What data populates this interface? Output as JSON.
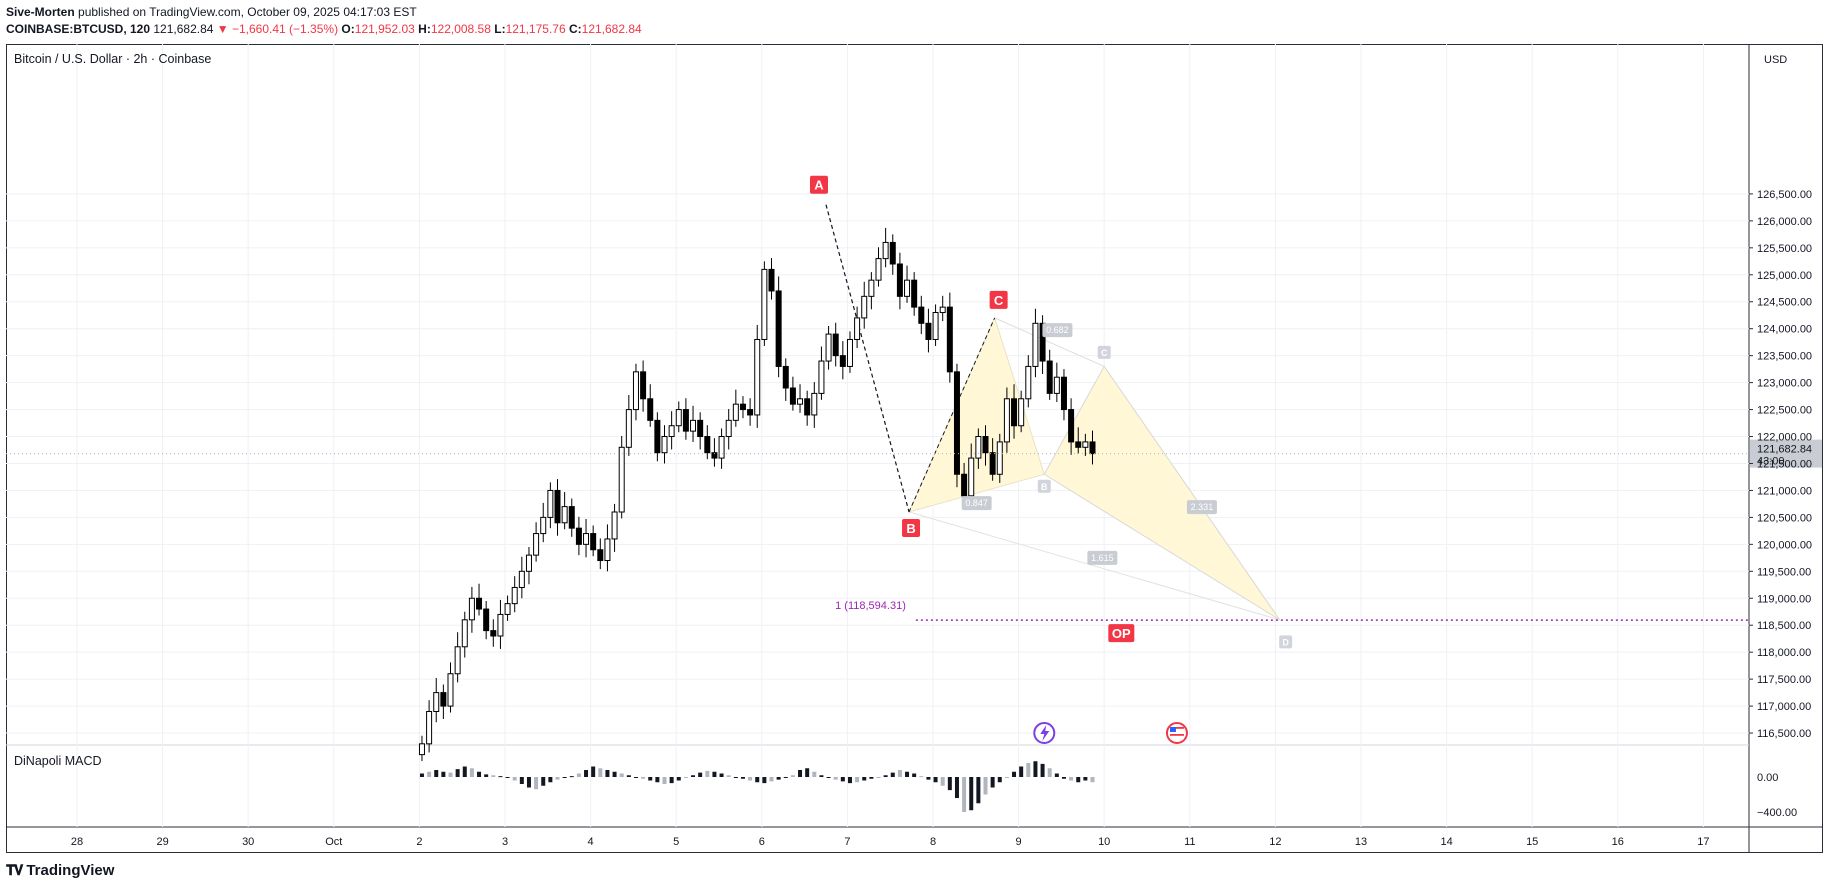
{
  "header": {
    "author": "Sive-Morten",
    "published_text": "published on TradingView.com, October 09, 2025 04:17:03 EST",
    "symbol": "COINBASE:BTCUSD, 120",
    "last": "121,682.84",
    "change": "▼ −1,660.41 (−1.35%)",
    "o_label": "O:",
    "o": "121,952.03",
    "h_label": "H:",
    "h": "122,008.58",
    "l_label": "L:",
    "l": "121,175.76",
    "c_label": "C:",
    "c": "121,682.84"
  },
  "symbol_title": "Bitcoin / U.S. Dollar · 2h · Coinbase",
  "currency": "USD",
  "indicator_label": "DiNapoli MACD",
  "branding": "TradingView",
  "colors": {
    "up": "#ffffff",
    "down": "#000000",
    "accent_red": "#f23645",
    "level": "#9c27b0",
    "pattern_fill": "#fff7d6"
  },
  "chart_data": {
    "type": "candlestick",
    "instrument": "Bitcoin / U.S. Dollar",
    "timeframe": "2h",
    "ylim": [
      116000,
      127000
    ],
    "y_ticks": [
      116500,
      117000,
      117500,
      118000,
      118500,
      119000,
      119500,
      120000,
      120500,
      121000,
      121500,
      122000,
      122500,
      123000,
      123500,
      124000,
      124500,
      125000,
      125500,
      126000,
      126500
    ],
    "y_tick_labels": [
      "116,500.00",
      "117,000.00",
      "117,500.00",
      "118,000.00",
      "118,500.00",
      "119,000.00",
      "119,500.00",
      "120,000.00",
      "120,500.00",
      "121,000.00",
      "121,500.00",
      "122,000.00",
      "122,500.00",
      "123,000.00",
      "123,500.00",
      "124,000.00",
      "124,500.00",
      "125,000.00",
      "125,500.00",
      "126,000.00",
      "126,500.00"
    ],
    "x_ticks": [
      "28",
      "29",
      "30",
      "Oct",
      "2",
      "3",
      "4",
      "5",
      "6",
      "7",
      "8",
      "9",
      "10",
      "11",
      "12",
      "13",
      "14",
      "15",
      "16",
      "17"
    ],
    "x_tick_day_index": [
      0,
      1,
      2,
      3,
      4,
      5,
      6,
      7,
      8,
      9,
      10,
      11,
      12,
      13,
      14,
      15,
      16,
      17,
      18,
      19
    ],
    "last_price_label": "121,682.84",
    "countdown_label": "43:00",
    "last_price": 121682.84,
    "level": {
      "label": "1 (118,594.31)",
      "price": 118594.31,
      "start_day": 9.8
    },
    "op_label": "OP",
    "op_day": 12.2,
    "pattern_points": [
      {
        "label": "A",
        "day": 8.75,
        "price": 126300
      },
      {
        "label": "B",
        "day": 9.72,
        "price": 120600
      },
      {
        "label": "C",
        "day": 10.72,
        "price": 124200
      },
      {
        "label": "C",
        "day": 12.0,
        "price": 123300
      },
      {
        "label": "B",
        "day": 11.3,
        "price": 121300
      },
      {
        "label": "D",
        "day": 14.05,
        "price": 118600
      }
    ],
    "ratios": [
      "0.682",
      "0.847",
      "2.331",
      "1.615"
    ],
    "macd_ticks": [
      "0.00",
      "−400.00"
    ],
    "closes": [
      116300,
      116900,
      117250,
      117000,
      117600,
      118100,
      118600,
      119000,
      118800,
      118400,
      118300,
      118700,
      118900,
      119200,
      119500,
      119800,
      120200,
      120500,
      121000,
      120400,
      120700,
      120300,
      120000,
      120200,
      119900,
      119700,
      120100,
      120600,
      121800,
      122500,
      123200,
      122700,
      122300,
      121700,
      122000,
      122200,
      122500,
      122100,
      122300,
      122000,
      121700,
      121600,
      122000,
      122300,
      122600,
      122500,
      122400,
      123800,
      125100,
      124700,
      123300,
      122900,
      122600,
      122700,
      122400,
      122800,
      123400,
      123900,
      123500,
      123300,
      123800,
      124200,
      124600,
      124900,
      125300,
      125600,
      125200,
      124600,
      124900,
      124400,
      124100,
      123800,
      124300,
      124400,
      123200,
      121300,
      120900,
      121600,
      122000,
      121700,
      121300,
      121900,
      122700,
      122200,
      122700,
      123300,
      124100,
      123400,
      122800,
      123100,
      122500,
      121900,
      121800,
      121900,
      121682
    ],
    "macd_values": [
      40,
      60,
      80,
      60,
      50,
      90,
      120,
      100,
      60,
      30,
      20,
      10,
      0,
      -40,
      -80,
      -120,
      -140,
      -100,
      -60,
      -30,
      -10,
      10,
      40,
      80,
      120,
      100,
      80,
      60,
      40,
      20,
      0,
      -20,
      -40,
      -60,
      -80,
      -70,
      -40,
      -10,
      20,
      50,
      70,
      60,
      40,
      20,
      0,
      -20,
      -40,
      -60,
      -70,
      -50,
      -30,
      -10,
      20,
      80,
      100,
      60,
      20,
      -10,
      -30,
      -50,
      -70,
      -60,
      -40,
      -20,
      0,
      20,
      50,
      80,
      60,
      40,
      10,
      -30,
      -60,
      -100,
      -150,
      -240,
      -400,
      -380,
      -300,
      -200,
      -120,
      -60,
      -10,
      60,
      120,
      160,
      180,
      150,
      100,
      40,
      -20,
      -40,
      -60,
      -40,
      -60
    ]
  }
}
